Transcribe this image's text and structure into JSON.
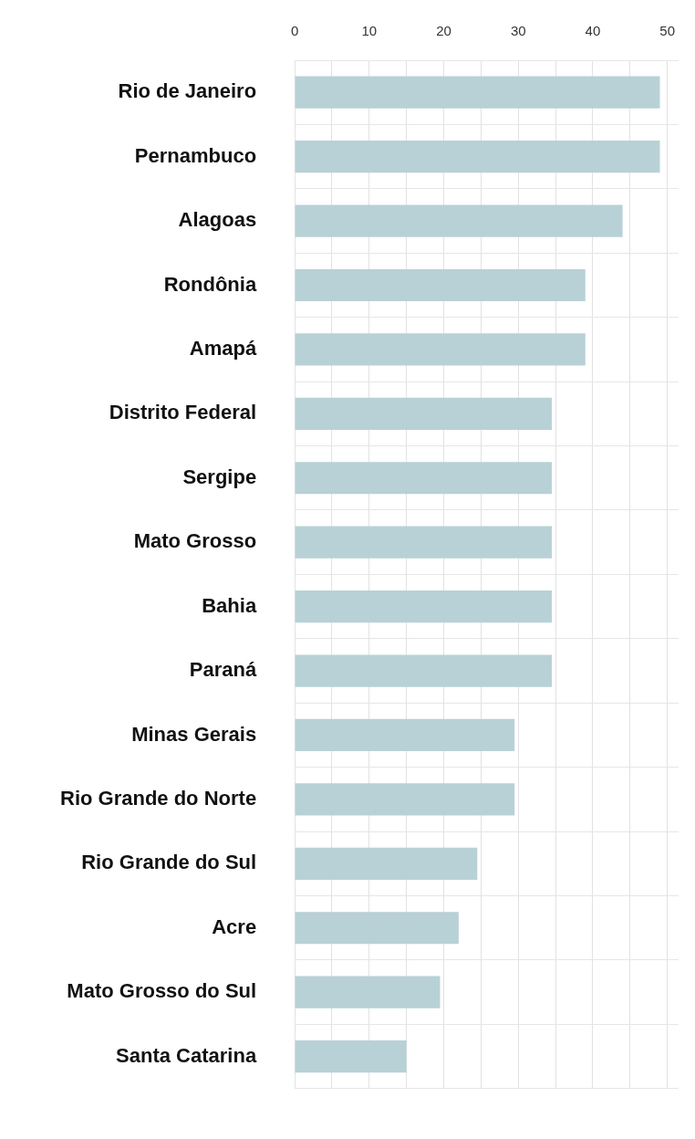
{
  "chart_data": {
    "type": "bar",
    "orientation": "horizontal",
    "categories": [
      "Rio de Janeiro",
      "Pernambuco",
      "Alagoas",
      "Rondônia",
      "Amapá",
      "Distrito Federal",
      "Sergipe",
      "Mato Grosso",
      "Bahia",
      "Paraná",
      "Minas Gerais",
      "Rio Grande do Norte",
      "Rio Grande do Sul",
      "Acre",
      "Mato Grosso do Sul",
      "Santa Catarina"
    ],
    "values": [
      49,
      49,
      44,
      39,
      39,
      34.5,
      34.5,
      34.5,
      34.5,
      34.5,
      29.5,
      29.5,
      24.5,
      22,
      19.5,
      15
    ],
    "color": "#b8d1d6",
    "xlim": [
      0,
      51.5
    ],
    "xticks": [
      0,
      {
        "value": 5,
        "label": null
      },
      10,
      {
        "value": 15,
        "label": null
      },
      20,
      {
        "value": 25,
        "label": null
      },
      30,
      {
        "value": 35,
        "label": null
      },
      40,
      {
        "value": 45,
        "label": null
      },
      50
    ],
    "grid": true
  }
}
